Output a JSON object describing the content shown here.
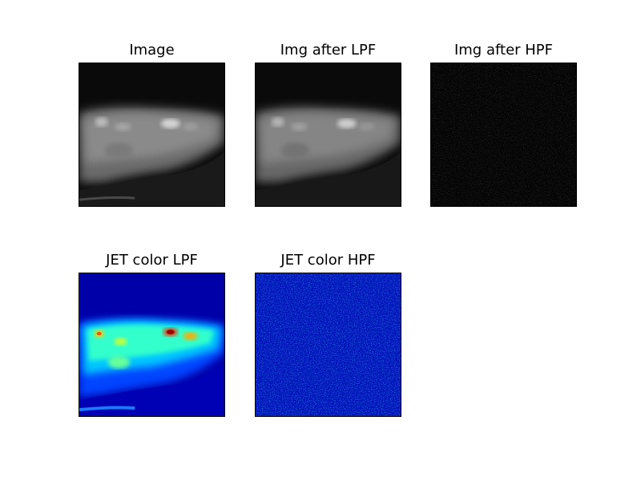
{
  "figure": {
    "panels": [
      {
        "id": "image",
        "title": "Image",
        "colormap": "gray"
      },
      {
        "id": "img-lpf",
        "title": "Img after LPF",
        "colormap": "gray"
      },
      {
        "id": "img-hpf",
        "title": "Img after HPF",
        "colormap": "gray"
      },
      {
        "id": "jet-lpf",
        "title": "JET color LPF",
        "colormap": "jet"
      },
      {
        "id": "jet-hpf",
        "title": "JET color HPF",
        "colormap": "jet"
      }
    ]
  }
}
